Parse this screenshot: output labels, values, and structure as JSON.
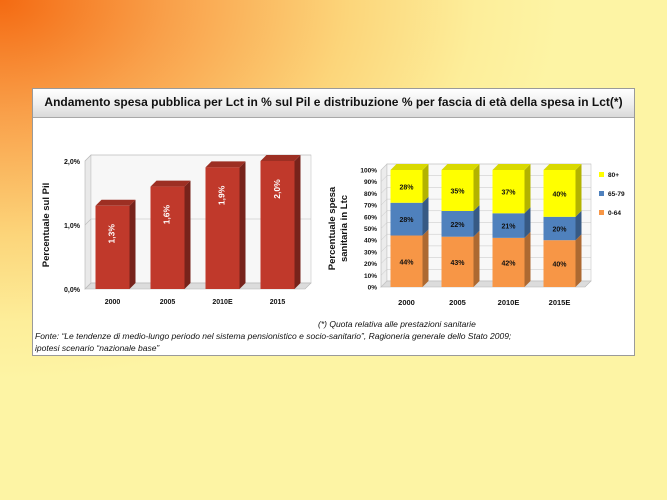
{
  "slide": {
    "title": "Andamento spesa pubblica per Lct in % sul Pil e distribuzione % per fascia di età della spesa in Lct(*)",
    "note": "(*) Quota relativa alle prestazioni sanitarie",
    "source_line1": "Fonte: “Le tendenze di medio-lungo periodo nel sistema pensionistico e socio-sanitario”, Ragioneria generale dello Stato 2009;",
    "source_line2": "ipotesi scenario “nazionale base”"
  },
  "colors": {
    "bar_red": "#c0392b",
    "seg_0_64": "#f79646",
    "seg_65_79": "#4f81bd",
    "seg_80_plus": "#ffff00"
  },
  "chart_data": [
    {
      "type": "bar",
      "categories": [
        "2000",
        "2005",
        "2010E",
        "2015"
      ],
      "values": [
        1.3,
        1.6,
        1.9,
        2.0
      ],
      "value_labels": [
        "1,3%",
        "1,6%",
        "1,9%",
        "2,0%"
      ],
      "ylabel": "Percentuale sul Pil",
      "yticks": [
        "0,0%",
        "1,0%",
        "2,0%"
      ],
      "ylim": [
        0,
        2.0
      ],
      "grid": true,
      "style": "3d"
    },
    {
      "type": "bar",
      "stacked": true,
      "categories": [
        "2000",
        "2005",
        "2010E",
        "2015E"
      ],
      "ylabel_line1": "Percentuale spesa",
      "ylabel_line2": "sanitaria in Ltc",
      "yticks": [
        "0%",
        "10%",
        "20%",
        "30%",
        "40%",
        "50%",
        "60%",
        "70%",
        "80%",
        "90%",
        "100%"
      ],
      "ylim": [
        0,
        100
      ],
      "grid": true,
      "legend_position": "right",
      "style": "3d",
      "series": [
        {
          "name": "0-64",
          "values": [
            44,
            43,
            42,
            40
          ],
          "labels": [
            "44%",
            "43%",
            "42%",
            "40%"
          ]
        },
        {
          "name": "65-79",
          "values": [
            28,
            22,
            21,
            20
          ],
          "labels": [
            "28%",
            "22%",
            "21%",
            "20%"
          ]
        },
        {
          "name": "80+",
          "values": [
            28,
            35,
            37,
            40
          ],
          "labels": [
            "28%",
            "35%",
            "37%",
            "40%"
          ]
        }
      ]
    }
  ]
}
